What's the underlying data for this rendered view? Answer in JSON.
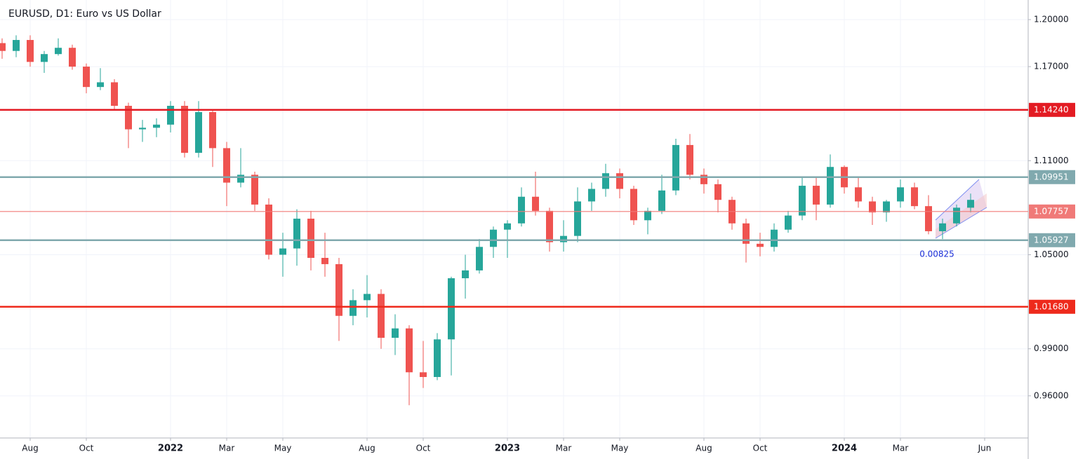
{
  "chart_data": {
    "type": "candlestick",
    "title": "EURUSD, D1: Euro vs US Dollar",
    "categories": [
      null,
      null,
      "Aug",
      null,
      null,
      null,
      "Oct",
      null,
      null,
      null,
      null,
      null,
      "2022",
      null,
      null,
      null,
      "Mar",
      null,
      null,
      null,
      "May",
      null,
      null,
      null,
      null,
      null,
      "Aug",
      null,
      null,
      null,
      "Oct",
      null,
      null,
      null,
      null,
      null,
      "2023",
      null,
      null,
      null,
      "Mar",
      null,
      null,
      null,
      "May",
      null,
      null,
      null,
      null,
      null,
      "Aug",
      null,
      null,
      null,
      "Oct",
      null,
      null,
      null,
      null,
      null,
      "2024",
      null,
      null,
      null,
      "Mar",
      null,
      null,
      null,
      null,
      null,
      "Jun"
    ],
    "open": [
      1.185,
      1.18,
      1.187,
      1.173,
      1.178,
      1.182,
      1.17,
      1.157,
      1.16,
      1.145,
      1.13,
      1.131,
      1.133,
      1.145,
      1.115,
      1.141,
      1.118,
      1.096,
      1.101,
      1.082,
      1.05,
      1.054,
      1.073,
      1.048,
      1.044,
      1.011,
      1.021,
      1.025,
      0.997,
      1.003,
      0.975,
      0.972,
      0.996,
      1.035,
      1.04,
      1.055,
      1.066,
      1.07,
      1.087,
      1.078,
      1.058,
      1.062,
      1.084,
      1.092,
      1.102,
      1.092,
      1.072,
      1.078,
      1.091,
      1.12,
      1.101,
      1.095,
      1.085,
      1.07,
      1.057,
      1.055,
      1.066,
      1.075,
      1.094,
      1.082,
      1.106,
      1.093,
      1.084,
      1.077,
      1.084,
      1.093,
      1.081,
      1.065,
      1.07,
      1.08,
      null
    ],
    "high": [
      1.188,
      1.19,
      1.19,
      1.18,
      1.188,
      1.184,
      1.172,
      1.169,
      1.162,
      1.147,
      1.136,
      1.137,
      1.148,
      1.148,
      1.148,
      1.143,
      1.122,
      1.118,
      1.103,
      1.086,
      1.064,
      1.079,
      1.078,
      1.064,
      1.048,
      1.028,
      1.037,
      1.028,
      1.012,
      1.005,
      0.995,
      1.0,
      1.036,
      1.05,
      1.06,
      1.068,
      1.072,
      1.093,
      1.103,
      1.08,
      1.072,
      1.093,
      1.096,
      1.108,
      1.105,
      1.094,
      1.08,
      1.101,
      1.124,
      1.127,
      1.105,
      1.098,
      1.087,
      1.073,
      1.064,
      1.07,
      1.078,
      1.1,
      1.099,
      1.114,
      1.107,
      1.099,
      1.087,
      1.085,
      1.098,
      1.096,
      1.088,
      1.073,
      1.082,
      1.089,
      null
    ],
    "low": [
      1.175,
      1.176,
      1.17,
      1.166,
      1.177,
      1.168,
      1.153,
      1.155,
      1.143,
      1.118,
      1.122,
      1.125,
      1.128,
      1.112,
      1.112,
      1.106,
      1.081,
      1.093,
      1.078,
      1.047,
      1.036,
      1.043,
      1.04,
      1.036,
      0.995,
      1.005,
      1.01,
      0.99,
      0.986,
      0.954,
      0.965,
      0.97,
      0.973,
      1.022,
      1.038,
      1.048,
      1.048,
      1.068,
      1.075,
      1.052,
      1.052,
      1.058,
      1.078,
      1.087,
      1.086,
      1.069,
      1.063,
      1.076,
      1.088,
      1.098,
      1.089,
      1.077,
      1.066,
      1.045,
      1.049,
      1.052,
      1.064,
      1.072,
      1.072,
      1.08,
      1.089,
      1.08,
      1.069,
      1.071,
      1.08,
      1.079,
      1.063,
      1.06,
      1.068,
      1.077,
      null
    ],
    "close": [
      1.18,
      1.187,
      1.173,
      1.178,
      1.182,
      1.17,
      1.157,
      1.16,
      1.145,
      1.13,
      1.131,
      1.133,
      1.145,
      1.115,
      1.141,
      1.118,
      1.096,
      1.101,
      1.082,
      1.05,
      1.054,
      1.073,
      1.048,
      1.044,
      1.011,
      1.021,
      1.025,
      0.997,
      1.003,
      0.975,
      0.972,
      0.996,
      1.035,
      1.04,
      1.055,
      1.066,
      1.07,
      1.087,
      1.078,
      1.058,
      1.062,
      1.084,
      1.092,
      1.102,
      1.092,
      1.072,
      1.078,
      1.091,
      1.12,
      1.101,
      1.095,
      1.085,
      1.07,
      1.057,
      1.055,
      1.066,
      1.075,
      1.094,
      1.082,
      1.106,
      1.093,
      1.084,
      1.077,
      1.084,
      1.093,
      1.081,
      1.065,
      1.07,
      1.08,
      1.085,
      null
    ],
    "up_color": "#26a69a",
    "down_color": "#ef5350",
    "ylim": [
      0.9331,
      1.2125
    ],
    "yticks": [
      {
        "value": 1.2,
        "label": "1.20000"
      },
      {
        "value": 1.17,
        "label": "1.17000"
      },
      {
        "value": 1.11,
        "label": "1.11000"
      },
      {
        "value": 1.05,
        "label": "1.05000"
      },
      {
        "value": 0.99,
        "label": "0.99000"
      },
      {
        "value": 0.96,
        "label": "0.96000"
      }
    ],
    "grid": true,
    "levels": [
      {
        "value": 1.1424,
        "label": "1.14240",
        "color": "#e31b23",
        "line_width": 2.5
      },
      {
        "value": 1.09951,
        "label": "1.09951",
        "color": "#80a9ae",
        "line_width": 2.5
      },
      {
        "value": 1.07757,
        "label": "1.07757",
        "color": "#f07a78",
        "line_width": 1.2
      },
      {
        "value": 1.05927,
        "label": "1.05927",
        "color": "#80a9ae",
        "line_width": 2.5
      },
      {
        "value": 1.0168,
        "label": "1.01680",
        "color": "#ee2a1c",
        "line_width": 2.5
      }
    ],
    "annotation": "0.00825"
  }
}
